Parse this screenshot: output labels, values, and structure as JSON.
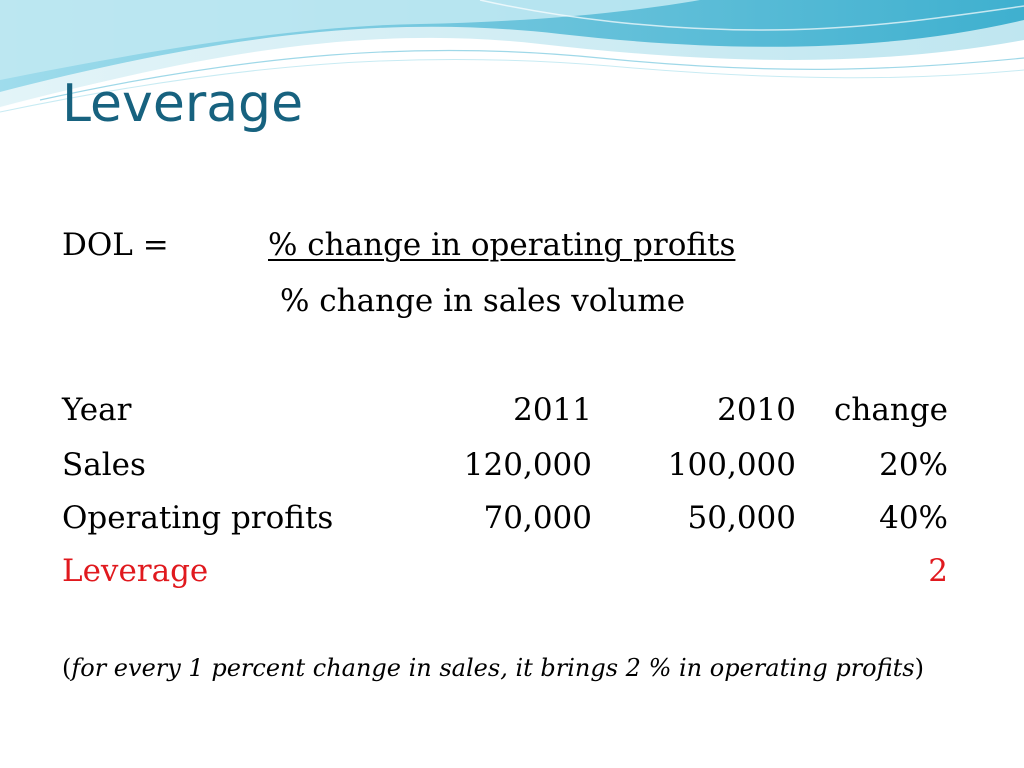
{
  "slide": {
    "title": "Leverage",
    "colors": {
      "title": "#17627f",
      "accent": "#e0191e",
      "wave_light": "#d6eef5",
      "wave_mid": "#8fd0e3",
      "wave_dark": "#3fb0cf"
    }
  },
  "formula": {
    "label": "DOL =",
    "numerator": "% change in operating profits",
    "denominator": "% change in sales volume"
  },
  "table": {
    "header": {
      "label": "Year",
      "col1": "2011",
      "col2": "2010",
      "col3": "change"
    },
    "rows": [
      {
        "label": "Sales",
        "col1": "120,000",
        "col2": "100,000",
        "col3": "20%"
      },
      {
        "label": "Operating profits",
        "col1": "70,000",
        "col2": "50,000",
        "col3": "40%"
      },
      {
        "label": "Leverage",
        "col1": "",
        "col2": "",
        "col3": "2"
      }
    ]
  },
  "note": {
    "open": "(",
    "text": "for every 1 percent change in sales, it brings 2 % in operating profits",
    "close": ")"
  }
}
